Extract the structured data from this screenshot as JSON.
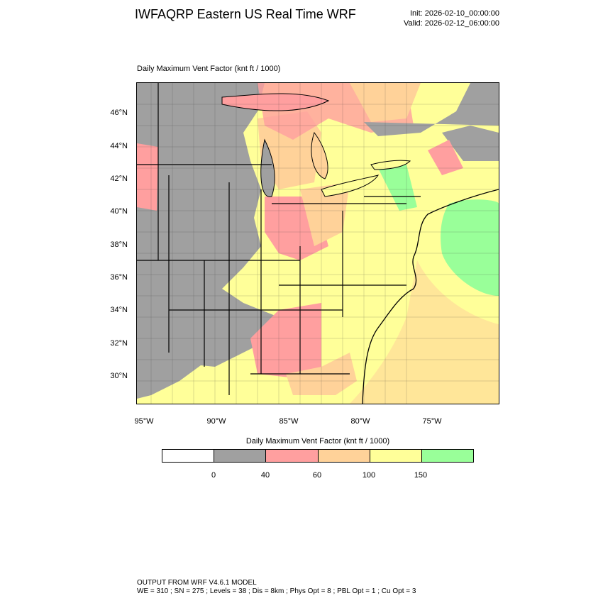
{
  "header": {
    "title": "IWFAQRP Eastern US Real Time WRF",
    "init": "Init: 2026-02-10_00:00:00",
    "valid": "Valid: 2026-02-12_06:00:00"
  },
  "map": {
    "subtitle": "Daily Maximum Vent Factor   (knt ft / 1000)",
    "lat_labels": [
      "46°N",
      "44°N",
      "42°N",
      "40°N",
      "38°N",
      "36°N",
      "34°N",
      "32°N",
      "30°N"
    ],
    "lon_labels": [
      "95°W",
      "90°W",
      "85°W",
      "80°W",
      "75°W"
    ]
  },
  "legend": {
    "title": "Daily Maximum Vent Factor  (knt ft / 1000)",
    "ticks": [
      "0",
      "40",
      "60",
      "100",
      "150"
    ],
    "colors": [
      "#ffffff",
      "#a0a0a0",
      "#ff9f9f",
      "#ffd299",
      "#ffff99",
      "#99ff99"
    ]
  },
  "footer": {
    "line1": "OUTPUT FROM WRF V4.6.1 MODEL",
    "line2": "WE = 310 ; SN = 275 ; Levels = 38 ; Dis = 8km ; Phys Opt = 8 ; PBL Opt = 1 ; Cu Opt = 3"
  }
}
